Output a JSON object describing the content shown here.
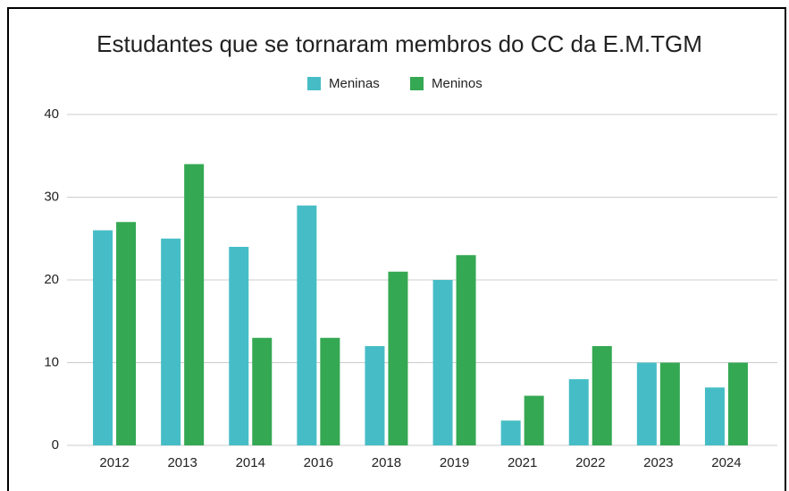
{
  "chart_data": {
    "type": "bar",
    "title": "Estudantes que se tornaram membros do CC da E.M.TGM",
    "categories": [
      "2012",
      "2013",
      "2014",
      "2016",
      "2018",
      "2019",
      "2021",
      "2022",
      "2023",
      "2024"
    ],
    "series": [
      {
        "name": "Meninas",
        "color": "#46bdc6",
        "values": [
          26,
          25,
          24,
          29,
          12,
          20,
          3,
          8,
          10,
          7
        ]
      },
      {
        "name": "Meninos",
        "color": "#34a853",
        "values": [
          27,
          34,
          13,
          13,
          21,
          23,
          6,
          12,
          10,
          10
        ]
      }
    ],
    "ylim": [
      0,
      40
    ],
    "yticks": [
      0,
      10,
      20,
      30,
      40
    ],
    "grid": true,
    "legend": "top"
  }
}
